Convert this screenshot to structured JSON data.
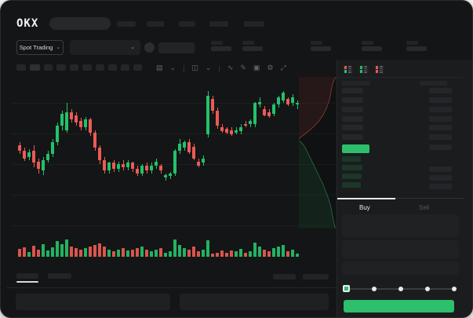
{
  "colors": {
    "accent_green": "#2ebf6c",
    "accent_red": "#eb5b54",
    "panel_bg": "#1a1c1d",
    "card_bg": "#141516",
    "placeholder": "#222426",
    "bid_row_tint": "rgba(46,191,108,0.16)",
    "ask_row_gray": "#25272a",
    "amount_bar_gray": "#24262a",
    "text_bright": "#e8e9ea",
    "text_dim": "#55585c"
  },
  "navbar": {
    "logo": "OKX",
    "nav_placeholder_count": 5
  },
  "market_bar": {
    "market_selector_label": "Spot Trading",
    "chevron": "⌄",
    "stat_group_count": 5
  },
  "toolbar": {
    "button_count": 10,
    "icons": [
      {
        "name": "interval-selector-icon",
        "glyph": "▤"
      },
      {
        "name": "chevron-down-icon",
        "glyph": "⌄"
      },
      {
        "name": "divider",
        "glyph": "|"
      },
      {
        "name": "chart-style-icon",
        "glyph": "◫"
      },
      {
        "name": "chevron-down-icon",
        "glyph": "⌄"
      },
      {
        "name": "divider",
        "glyph": "|"
      },
      {
        "name": "indicators-icon",
        "glyph": "∿"
      },
      {
        "name": "draw-tools-icon",
        "glyph": "✎"
      },
      {
        "name": "snapshot-icon",
        "glyph": "▣"
      },
      {
        "name": "settings-icon",
        "glyph": "⚙"
      },
      {
        "name": "fullscreen-icon",
        "glyph": "⤢"
      }
    ]
  },
  "order_book": {
    "view_icons": [
      {
        "name": "book-combined-icon",
        "cells": [
          "red",
          "red",
          "green",
          "green"
        ]
      },
      {
        "name": "book-bids-only-icon",
        "cells": [
          "green",
          "green",
          "green",
          "green"
        ]
      },
      {
        "name": "book-asks-only-icon",
        "cells": [
          "red",
          "red",
          "red",
          "red"
        ]
      }
    ],
    "ask_row_count": 6,
    "bid_row_count": 4,
    "bid_rows_with_amount": [
      1,
      2,
      3
    ],
    "last_price_highlight": "green"
  },
  "trade_panel": {
    "buy_tab": "Buy",
    "sell_tab": "Sell",
    "amount_slider_steps": 5,
    "slider_value_index": 0,
    "submit_button_color": "#2ebf6c",
    "submit_button_label": ""
  },
  "bottom_panel": {
    "tab_count": 2,
    "active_tab_index": 0,
    "right_placeholder_count": 2,
    "panel_count": 2
  },
  "chart_data": {
    "type": "candlestick",
    "title": "",
    "note": "no axis tick labels visible in screenshot; prices are relative units 0-100",
    "up_color": "#23c16b",
    "down_color": "#eb5b54",
    "grid": true,
    "ylim": [
      0,
      100
    ],
    "candles_ohlc": [
      [
        56,
        58,
        50,
        52
      ],
      [
        52,
        54,
        45,
        47
      ],
      [
        48,
        53,
        46,
        51
      ],
      [
        52,
        56,
        41,
        44
      ],
      [
        45,
        47,
        37,
        40
      ],
      [
        39,
        48,
        36,
        46
      ],
      [
        46,
        52,
        44,
        50
      ],
      [
        50,
        60,
        48,
        58
      ],
      [
        58,
        71,
        56,
        69
      ],
      [
        69,
        79,
        66,
        77
      ],
      [
        66,
        84,
        64,
        78
      ],
      [
        78,
        80,
        71,
        73
      ],
      [
        76,
        78,
        69,
        71
      ],
      [
        72,
        74,
        66,
        68
      ],
      [
        68,
        75,
        66,
        73
      ],
      [
        73,
        74,
        62,
        64
      ],
      [
        64,
        66,
        52,
        54
      ],
      [
        54,
        56,
        43,
        46
      ],
      [
        46,
        48,
        37,
        39
      ],
      [
        39,
        45,
        37,
        44
      ],
      [
        44,
        46,
        38,
        40
      ],
      [
        40,
        45,
        38,
        43
      ],
      [
        43,
        46,
        39,
        41
      ],
      [
        41,
        46,
        39,
        44
      ],
      [
        44,
        45,
        38,
        40
      ],
      [
        40,
        42,
        35,
        37
      ],
      [
        37,
        43,
        35,
        42
      ],
      [
        42,
        44,
        37,
        39
      ],
      [
        39,
        44,
        37,
        42
      ],
      [
        42,
        47,
        40,
        45
      ],
      [
        42,
        43,
        37,
        39
      ],
      [
        34,
        37,
        32,
        36
      ],
      [
        35,
        38,
        33,
        37
      ],
      [
        37,
        53,
        35,
        52
      ],
      [
        52,
        60,
        50,
        57
      ],
      [
        54,
        59,
        52,
        58
      ],
      [
        58,
        60,
        50,
        51
      ],
      [
        55,
        57,
        46,
        47
      ],
      [
        45,
        47,
        41,
        42
      ],
      [
        44,
        49,
        42,
        47
      ],
      [
        63,
        92,
        61,
        89
      ],
      [
        87,
        89,
        77,
        79
      ],
      [
        79,
        81,
        67,
        69
      ],
      [
        68,
        70,
        64,
        65
      ],
      [
        67,
        68,
        63,
        64
      ],
      [
        66,
        68,
        62,
        63
      ],
      [
        64,
        68,
        63,
        66
      ],
      [
        65,
        70,
        63,
        68
      ],
      [
        70,
        72,
        68,
        69
      ],
      [
        70,
        73,
        68,
        72
      ],
      [
        70,
        85,
        68,
        84
      ],
      [
        83,
        88,
        81,
        85
      ],
      [
        80,
        82,
        75,
        76
      ],
      [
        78,
        80,
        74,
        75
      ],
      [
        77,
        84,
        75,
        83
      ],
      [
        83,
        89,
        81,
        88
      ],
      [
        86,
        92,
        84,
        91
      ],
      [
        87,
        88,
        82,
        83
      ],
      [
        84,
        90,
        82,
        88
      ],
      [
        83,
        86,
        80,
        84
      ]
    ],
    "volumes": [
      10,
      12,
      6,
      14,
      9,
      16,
      8,
      12,
      20,
      16,
      22,
      13,
      11,
      9,
      11,
      13,
      15,
      17,
      13,
      9,
      7,
      9,
      11,
      8,
      9,
      11,
      13,
      9,
      7,
      9,
      11,
      5,
      7,
      22,
      15,
      11,
      9,
      13,
      7,
      9,
      21,
      4,
      5,
      8,
      5,
      8,
      7,
      10,
      5,
      7,
      18,
      13,
      9,
      7,
      11,
      13,
      15,
      7,
      9,
      4
    ],
    "depth": {
      "asks_line": [
        [
          100,
          0
        ],
        [
          96,
          2
        ],
        [
          91,
          5
        ],
        [
          87,
          10
        ],
        [
          83,
          15
        ],
        [
          76,
          20
        ],
        [
          66,
          25
        ],
        [
          55,
          29
        ],
        [
          44,
          32
        ],
        [
          30,
          35
        ],
        [
          15,
          38
        ],
        [
          4,
          40
        ],
        [
          0,
          41
        ]
      ],
      "bids_line": [
        [
          0,
          42
        ],
        [
          6,
          43
        ],
        [
          13,
          45
        ],
        [
          20,
          48
        ],
        [
          26,
          51
        ],
        [
          32,
          54
        ],
        [
          40,
          58
        ],
        [
          48,
          62
        ],
        [
          56,
          66
        ],
        [
          64,
          70
        ],
        [
          72,
          75
        ],
        [
          80,
          80
        ],
        [
          86,
          85
        ],
        [
          90,
          90
        ],
        [
          94,
          95
        ],
        [
          98,
          99
        ],
        [
          100,
          100
        ]
      ],
      "ask_fill": "rgba(235,91,84,0.10)",
      "bid_fill": "rgba(46,191,108,0.10)",
      "ask_stroke": "rgba(235,91,84,0.55)",
      "bid_stroke": "rgba(46,191,108,0.55)"
    }
  }
}
